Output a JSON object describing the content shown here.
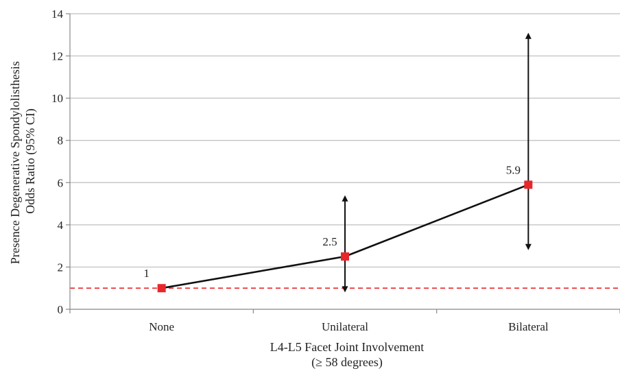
{
  "chart_data": {
    "type": "line",
    "categories": [
      "None",
      "Unilateral",
      "Bilateral"
    ],
    "series": [
      {
        "values": [
          1,
          2.5,
          5.9
        ],
        "ci_lower": [
          null,
          0.8,
          2.8
        ],
        "ci_upper": [
          null,
          5.4,
          13.1
        ],
        "data_labels": [
          "1",
          "2.5",
          "5.9"
        ]
      }
    ],
    "reference_line": {
      "value": 1,
      "style": "dashed",
      "color": "#e8272b"
    },
    "xlabel": [
      "L4-L5 Facet Joint Involvement",
      "(≥ 58 degrees)"
    ],
    "ylabel": [
      "Presence Degenerative Spondylolisthesis",
      "Odds Ratio (95% CI)"
    ],
    "ylim": [
      0,
      14
    ],
    "yticks": [
      0,
      2,
      4,
      6,
      8,
      10,
      12,
      14
    ],
    "grid": true,
    "colors": {
      "line": "#111111",
      "marker": "#e8272b",
      "grid": "#bdbdbd",
      "axis": "#888888"
    }
  }
}
